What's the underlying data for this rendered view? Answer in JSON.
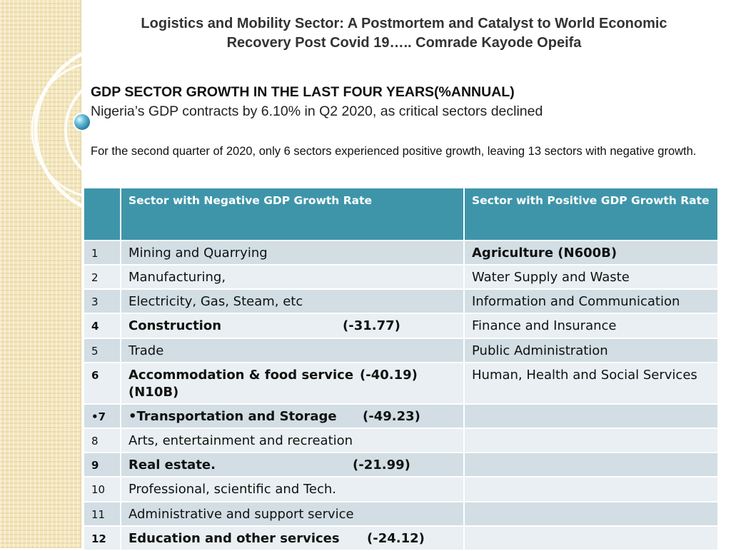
{
  "title": "Logistics and Mobility Sector: A Postmortem and Catalyst to World Economic Recovery Post Covid 19….. Comrade Kayode Opeifa",
  "heading": "GDP SECTOR GROWTH IN THE LAST FOUR YEARS(%ANNUAL)",
  "subheading": "Nigeria’s GDP contracts by 6.10% in Q2 2020, as critical sectors declined",
  "description": "For the second quarter of 2020, only 6 sectors experienced positive growth, leaving 13 sectors with negative growth.",
  "table": {
    "headers": [
      "",
      "Sector with Negative GDP Growth Rate",
      "Sector with Positive GDP Growth Rate"
    ],
    "rows": [
      {
        "num": "1",
        "neg": "Mining and Quarrying",
        "neg_value": "",
        "neg_extra": "",
        "pos": "Agriculture (N600B)",
        "bold": false,
        "pos_bold": true
      },
      {
        "num": "2",
        "neg": "Manufacturing,",
        "neg_value": "",
        "neg_extra": "",
        "pos": "Water Supply and Waste",
        "bold": false,
        "pos_bold": false
      },
      {
        "num": "3",
        "neg": "Electricity, Gas, Steam, etc",
        "neg_value": "",
        "neg_extra": "",
        "pos": "Information and Communication",
        "bold": false,
        "pos_bold": false
      },
      {
        "num": "4",
        "neg": "Construction",
        "neg_value": "(-31.77)",
        "neg_extra": "",
        "pos": "Finance and Insurance",
        "bold": true,
        "pos_bold": false
      },
      {
        "num": "5",
        "neg": "Trade",
        "neg_value": "",
        "neg_extra": "",
        "pos": "Public Administration",
        "bold": false,
        "pos_bold": false
      },
      {
        "num": "6",
        "neg": "Accommodation & food service",
        "neg_value": "(-40.19)",
        "neg_extra": "(N10B)",
        "pos": "Human, Health and Social Services",
        "bold": true,
        "pos_bold": false
      },
      {
        "num": "•7",
        "neg": "•Transportation and Storage",
        "neg_value": "(-49.23)",
        "neg_extra": "",
        "pos": "",
        "bold": true,
        "pos_bold": false
      },
      {
        "num": "8",
        "neg": "Arts, entertainment and recreation",
        "neg_value": "",
        "neg_extra": "",
        "pos": "",
        "bold": false,
        "pos_bold": false
      },
      {
        "num": "9",
        "neg": "Real estate.",
        "neg_value": "(-21.99)",
        "neg_extra": "",
        "pos": "",
        "bold": true,
        "pos_bold": false
      },
      {
        "num": "10",
        "neg": "Professional, scientific and Tech.",
        "neg_value": "",
        "neg_extra": "",
        "pos": "",
        "bold": false,
        "pos_bold": false
      },
      {
        "num": "11",
        "neg": "Administrative and support service",
        "neg_value": "",
        "neg_extra": "",
        "pos": "",
        "bold": false,
        "pos_bold": false
      },
      {
        "num": "12",
        "neg": "Education and other services",
        "neg_value": "(-24.12)",
        "neg_extra": "",
        "pos": "",
        "bold": true,
        "pos_bold": false
      }
    ]
  },
  "colors": {
    "header_bg": "#3e95aa",
    "row_odd": "#d2dee4",
    "row_even": "#e9eff2",
    "sidebar": "#f4e7bd"
  }
}
